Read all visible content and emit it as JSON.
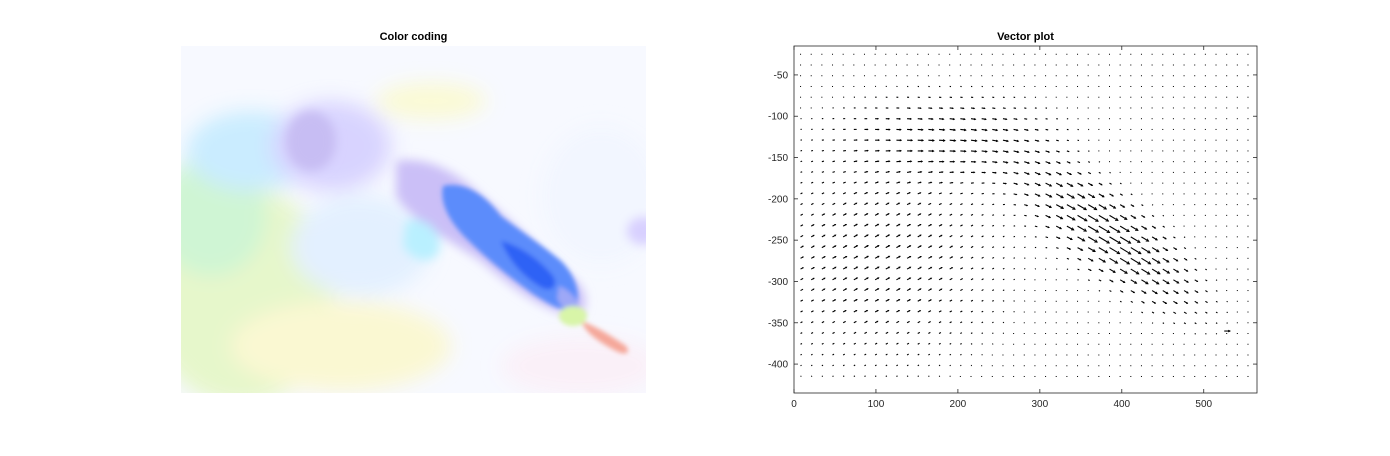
{
  "figure": {
    "left_title": "Color coding",
    "right_title": "Vector plot"
  },
  "chart_data": [
    {
      "type": "heatmap",
      "title": "Color coding",
      "description_free": true,
      "colors": {
        "background": "#f7f9ff",
        "blue_core": "#2f6bff",
        "violet": "#b9a8f5",
        "cyan": "#a9e4ff",
        "green": "#d4f7c8",
        "yellow": "#fbf8d0",
        "salmon": "#f5a79a"
      }
    },
    {
      "type": "scatter",
      "title": "Vector plot",
      "xlim": [
        0,
        565
      ],
      "ylim": [
        -435,
        -15
      ],
      "xticks": [
        0,
        100,
        200,
        300,
        400,
        500
      ],
      "yticks": [
        -50,
        -100,
        -150,
        -200,
        -250,
        -300,
        -350,
        -400
      ],
      "grid": false,
      "grid_spacing": 13,
      "arrow_color": "#000000",
      "regions": [
        {
          "x": 385,
          "y": -245,
          "sx": 80,
          "sy": 28,
          "angle_deg": -38,
          "u": 2.6,
          "v": -1.6
        },
        {
          "x": 190,
          "y": -125,
          "sx": 90,
          "sy": 35,
          "angle_deg": 0,
          "u": 1.2,
          "v": -0.2
        },
        {
          "x": 100,
          "y": -275,
          "sx": 110,
          "sy": 90,
          "angle_deg": 0,
          "u": 0.9,
          "v": 0.5
        }
      ],
      "extra_vectors": [
        {
          "x": 525,
          "y": -360,
          "u": 1.4,
          "v": 0
        }
      ]
    }
  ]
}
